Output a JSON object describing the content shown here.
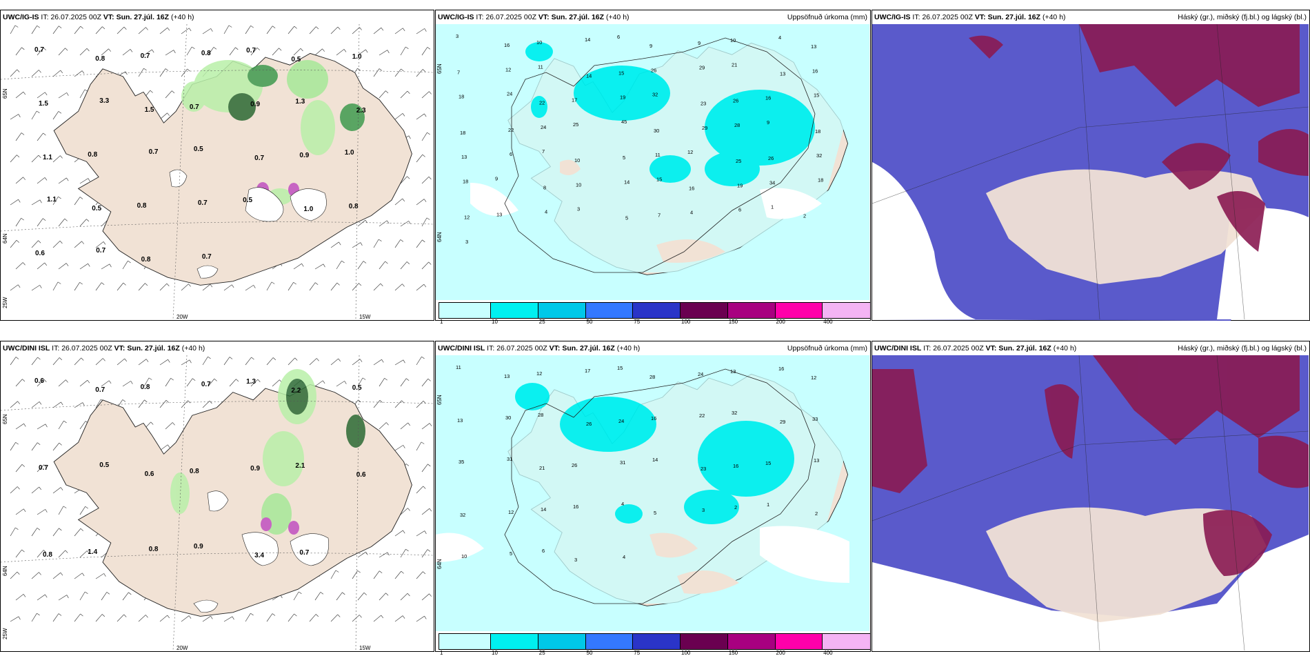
{
  "panels": [
    {
      "model": "UWC/IG-IS",
      "it_label": "IT:",
      "it_value": "26.07.2025 00Z",
      "vt_label": "VT:",
      "vt_value": "Sun. 27.júl. 16Z",
      "lead": "(+40 h)",
      "title_right": "",
      "lat_labels": [
        "65N",
        "64N",
        "25W"
      ],
      "lon_labels": [
        "20W",
        "15W"
      ],
      "values": [
        "0.7",
        "0.8",
        "0.7",
        "0.8",
        "0.7",
        "0.5",
        "1.0",
        "1.5",
        "3.3",
        "1.5",
        "0.7",
        "0.9",
        "1.3",
        "2.3",
        "1.1",
        "0.8",
        "0.7",
        "0.5",
        "0.7",
        "0.9",
        "1.0",
        "1.1",
        "0.5",
        "0.8",
        "0.7",
        "0.5",
        "1.0",
        "0.8",
        "0.6",
        "0.7",
        "0.8",
        "0.7"
      ]
    },
    {
      "model": "UWC/IG-IS",
      "it_label": "IT:",
      "it_value": "26.07.2025 00Z",
      "vt_label": "VT:",
      "vt_value": "Sun. 27.júl. 16Z",
      "lead": "(+40 h)",
      "title_right": "Uppsöfnuð úrkoma (mm)",
      "lat_labels": [
        "65N",
        "64N"
      ],
      "values": [
        "3",
        "16",
        "10",
        "14",
        "6",
        "9",
        "9",
        "10",
        "4",
        "13",
        "7",
        "12",
        "11",
        "14",
        "15",
        "26",
        "29",
        "21",
        "13",
        "16",
        "18",
        "24",
        "22",
        "17",
        "19",
        "32",
        "23",
        "26",
        "16",
        "15",
        "18",
        "22",
        "24",
        "25",
        "45",
        "30",
        "29",
        "28",
        "9",
        "18",
        "13",
        "6",
        "7",
        "10",
        "5",
        "11",
        "12",
        "25",
        "26",
        "32",
        "18",
        "9",
        "8",
        "10",
        "14",
        "15",
        "16",
        "19",
        "34",
        "18",
        "12",
        "13",
        "4",
        "3",
        "5",
        "7",
        "4",
        "6",
        "1",
        "2",
        "3"
      ],
      "colorbar": {
        "labels": [
          "1",
          "10",
          "25",
          "50",
          "75",
          "100",
          "150",
          "200",
          "400"
        ],
        "colors": [
          "#c8ffff",
          "#00f0f0",
          "#00c8e8",
          "#3478ff",
          "#2a34c8",
          "#6a0050",
          "#a80080",
          "#ff00aa",
          "#f4b4f4"
        ]
      }
    },
    {
      "model": "UWC/IG-IS",
      "it_label": "IT:",
      "it_value": "26.07.2025 00Z",
      "vt_label": "VT:",
      "vt_value": "Sun. 27.júl. 16Z",
      "lead": "(+40 h)",
      "title_right": "Háský (gr.), miðský (fj.bl.) og lágský (bl.)"
    },
    {
      "model": "UWC/DINI ISL",
      "it_label": "IT:",
      "it_value": "26.07.2025 00Z",
      "vt_label": "VT:",
      "vt_value": "Sun. 27.júl. 16Z",
      "lead": "(+40 h)",
      "title_right": "",
      "lat_labels": [
        "65N",
        "64N",
        "25W"
      ],
      "lon_labels": [
        "20W",
        "15W"
      ],
      "values": [
        "0.6",
        "0.7",
        "0.8",
        "0.7",
        "1.3",
        "2.2",
        "0.5",
        "0.7",
        "0.5",
        "0.6",
        "0.8",
        "0.9",
        "2.1",
        "0.6",
        "0.8",
        "1.4",
        "0.8",
        "0.9",
        "3.4",
        "0.7"
      ]
    },
    {
      "model": "UWC/DINI ISL",
      "it_label": "IT:",
      "it_value": "26.07.2025 00Z",
      "vt_label": "VT:",
      "vt_value": "Sun. 27.júl. 16Z",
      "lead": "(+40 h)",
      "title_right": "Uppsöfnuð úrkoma (mm)",
      "lat_labels": [
        "65N",
        "64N"
      ],
      "values": [
        "11",
        "13",
        "12",
        "17",
        "15",
        "28",
        "24",
        "13",
        "16",
        "12",
        "13",
        "30",
        "28",
        "26",
        "24",
        "16",
        "22",
        "32",
        "29",
        "33",
        "35",
        "31",
        "21",
        "26",
        "31",
        "14",
        "23",
        "16",
        "15",
        "13",
        "32",
        "12",
        "14",
        "16",
        "4",
        "5",
        "3",
        "2",
        "1",
        "2",
        "10",
        "5",
        "6",
        "3",
        "4"
      ],
      "colorbar": {
        "labels": [
          "1",
          "10",
          "25",
          "50",
          "75",
          "100",
          "150",
          "200",
          "400"
        ],
        "colors": [
          "#c8ffff",
          "#00f0f0",
          "#00c8e8",
          "#3478ff",
          "#2a34c8",
          "#6a0050",
          "#a80080",
          "#ff00aa",
          "#f4b4f4"
        ]
      }
    },
    {
      "model": "UWC/DINI ISL",
      "it_label": "IT:",
      "it_value": "26.07.2025 00Z",
      "vt_label": "VT:",
      "vt_value": "Sun. 27.júl. 16Z",
      "lead": "(+40 h)",
      "title_right": "Háský (gr.), miðský (fj.bl.) og lágský (bl.)"
    }
  ]
}
